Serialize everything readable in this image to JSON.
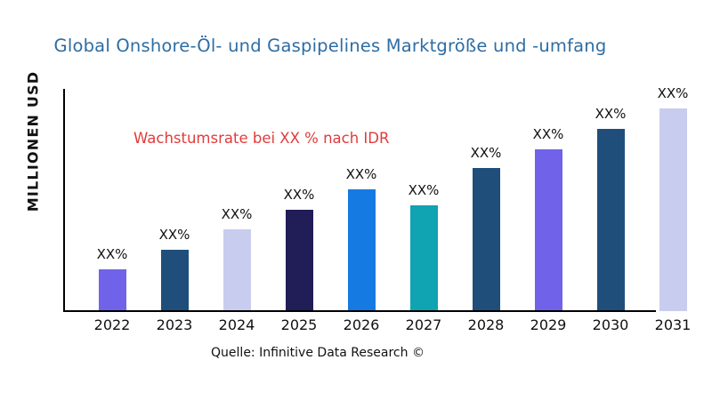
{
  "header": {
    "title": "Global Onshore-Öl- und Gaspipelines Marktgröße und -umfang",
    "title_color": "#2E6DA3"
  },
  "chart_data": {
    "type": "bar",
    "title": "Global Onshore-Öl- und Gaspipelines Marktgröße und -umfang",
    "xlabel": "",
    "ylabel": "MILLIONEN USD",
    "categories": [
      "2022",
      "2023",
      "2024",
      "2025",
      "2026",
      "2027",
      "2028",
      "2029",
      "2030",
      "2031"
    ],
    "values": [
      47,
      69,
      92,
      114,
      137,
      119,
      161,
      182,
      205,
      228
    ],
    "value_units": "relative (y-axis has no tick labels)",
    "ylim": [
      0,
      250
    ],
    "value_labels": [
      "XX%",
      "XX%",
      "XX%",
      "XX%",
      "XX%",
      "XX%",
      "XX%",
      "XX%",
      "XX%",
      "XX%"
    ],
    "bar_colors": [
      "#7062E9",
      "#1F4E7A",
      "#C8CCEF",
      "#211D56",
      "#157BE2",
      "#10A3B2",
      "#1F4E7A",
      "#7062E9",
      "#1F4E7A",
      "#C8CCEF"
    ],
    "grid": false,
    "legend": "none",
    "axis_color": "#000000",
    "annotation": {
      "text": "Wachstumsrate bei XX % nach IDR",
      "color": "#E23B3B"
    }
  },
  "footer": {
    "source": "Quelle: Infinitive Data Research ©"
  }
}
